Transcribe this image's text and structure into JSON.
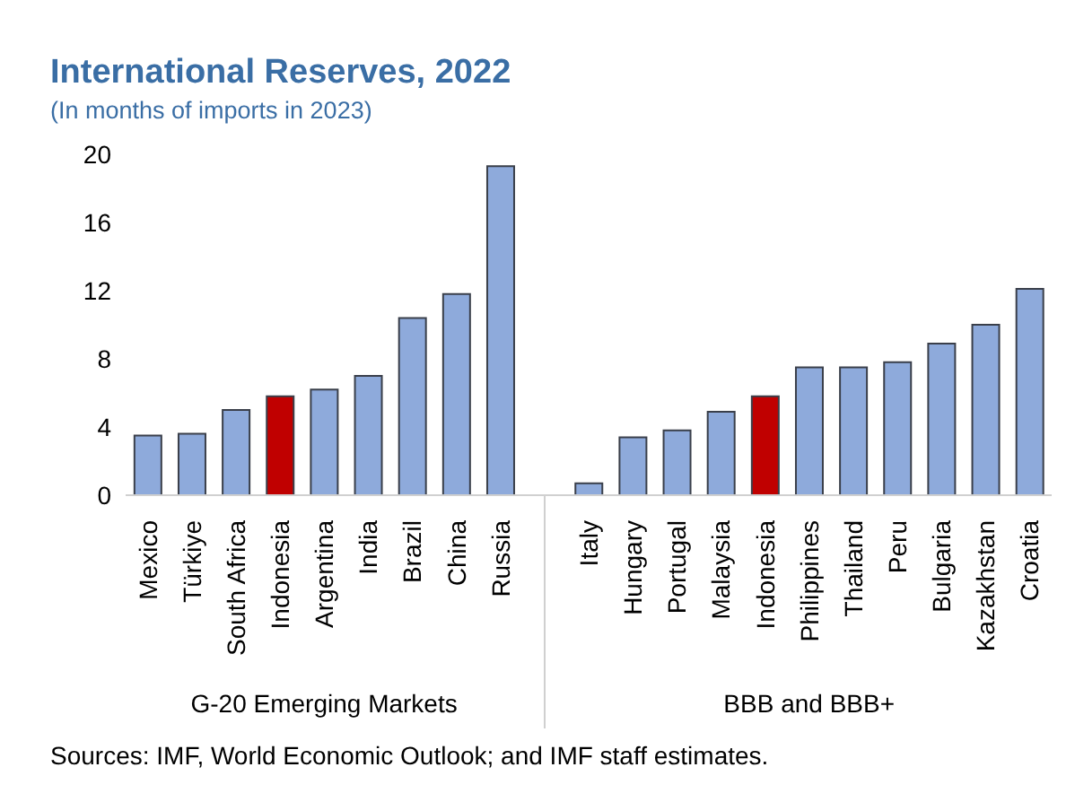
{
  "chart_data": {
    "type": "bar",
    "title": "International Reserves, 2022",
    "subtitle": "(In months of imports in 2023)",
    "categories": [
      "Mexico",
      "Türkiye",
      "South Africa",
      "Indonesia",
      "Argentina",
      "India",
      "Brazil",
      "China",
      "Russia",
      null,
      "Italy",
      "Hungary",
      "Portugal",
      "Malaysia",
      "Indonesia",
      "Philippines",
      "Thailand",
      "Peru",
      "Bulgaria",
      "Kazakhstan",
      "Croatia"
    ],
    "values": [
      3.5,
      3.6,
      5.0,
      5.8,
      6.2,
      7.0,
      10.4,
      11.8,
      19.3,
      null,
      0.7,
      3.4,
      3.8,
      4.9,
      5.8,
      7.5,
      7.5,
      7.8,
      8.9,
      10.0,
      12.1
    ],
    "colors": [
      "#8eaadb",
      "#8eaadb",
      "#8eaadb",
      "#c00000",
      "#8eaadb",
      "#8eaadb",
      "#8eaadb",
      "#8eaadb",
      "#8eaadb",
      "#8eaadb",
      "#8eaadb",
      "#8eaadb",
      "#8eaadb",
      "#8eaadb",
      "#c00000",
      "#8eaadb",
      "#8eaadb",
      "#8eaadb",
      "#8eaadb",
      "#8eaadb",
      "#8eaadb"
    ],
    "ylim": [
      0,
      20
    ],
    "yticks": [
      0,
      4,
      8,
      12,
      16,
      20
    ],
    "annotations": [
      "G-20 Emerging Markets",
      "BBB and BBB+",
      "Sources: IMF, World Economic Outlook; and IMF staff estimates."
    ]
  }
}
